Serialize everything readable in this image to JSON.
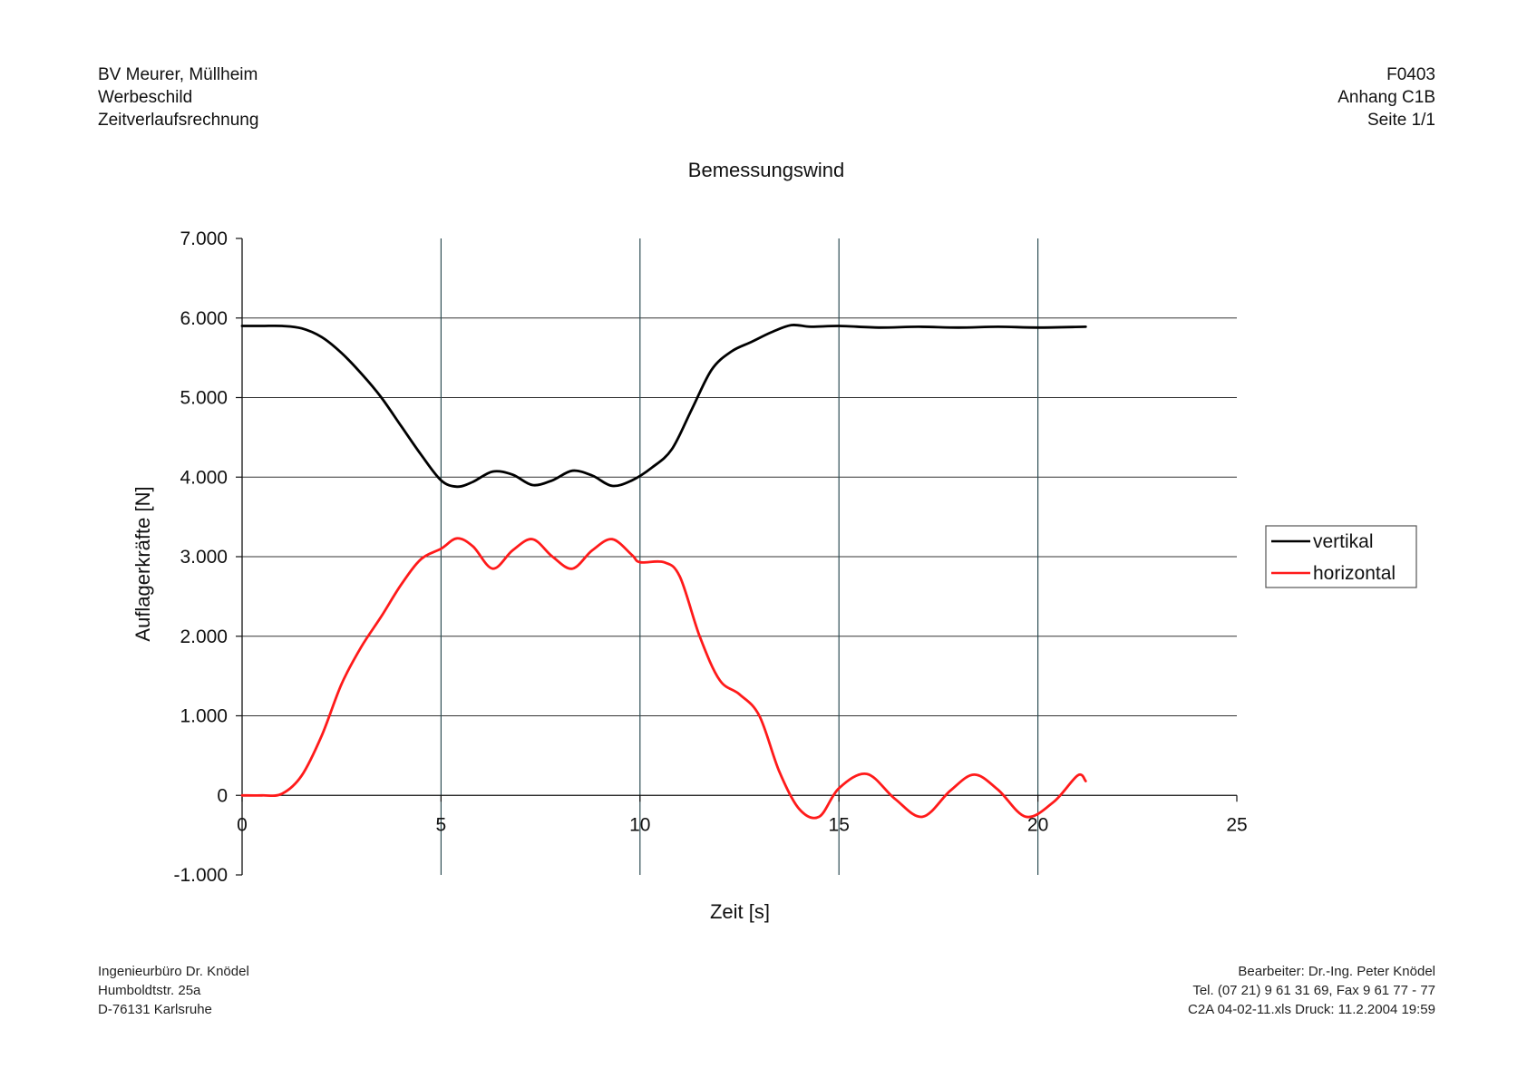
{
  "header": {
    "left_lines": [
      "BV Meurer, Müllheim",
      "Werbeschild",
      "Zeitverlaufsrechnung"
    ],
    "right_lines": [
      "F0403",
      "Anhang C1B",
      "Seite 1/1"
    ]
  },
  "footer": {
    "left_lines": [
      "Ingenieurbüro Dr. Knödel",
      "Humboldtstr. 25a",
      "D-76131 Karlsruhe"
    ],
    "right_lines": [
      "Bearbeiter: Dr.-Ing. Peter Knödel",
      "Tel. (07 21) 9 61 31 69, Fax 9 61 77 - 77",
      "C2A 04-02-11.xls Druck: 11.2.2004 19:59"
    ]
  },
  "chart_data": {
    "type": "line",
    "title": "Bemessungswind",
    "xlabel": "Zeit [s]",
    "ylabel": "Auflagerkräfte [N]",
    "xlim": [
      0,
      25
    ],
    "ylim": [
      -1000,
      7000
    ],
    "x_ticks": [
      0,
      5,
      10,
      15,
      20,
      25
    ],
    "x_tick_labels": [
      "0",
      "5",
      "10",
      "15",
      "20",
      "25"
    ],
    "y_ticks": [
      -1000,
      0,
      1000,
      2000,
      3000,
      4000,
      5000,
      6000,
      7000
    ],
    "y_tick_labels": [
      "-1.000",
      "0",
      "1.000",
      "2.000",
      "3.000",
      "4.000",
      "5.000",
      "6.000",
      "7.000"
    ],
    "grid": {
      "vertical": true,
      "horizontal": true
    },
    "legend_position": "right",
    "series": [
      {
        "name": "vertikal",
        "color": "#000000",
        "x": [
          0,
          0.5,
          1.0,
          1.5,
          2.0,
          2.5,
          3.0,
          3.5,
          4.0,
          4.5,
          5.0,
          5.4,
          5.8,
          6.3,
          6.8,
          7.3,
          7.8,
          8.3,
          8.8,
          9.3,
          9.8,
          10.3,
          10.8,
          11.3,
          11.8,
          12.3,
          12.8,
          13.3,
          13.8,
          14.3,
          15.0,
          16.0,
          17.0,
          18.0,
          19.0,
          20.0,
          21.2
        ],
        "y": [
          5900,
          5900,
          5900,
          5870,
          5760,
          5560,
          5300,
          5000,
          4640,
          4280,
          3960,
          3880,
          3940,
          4070,
          4030,
          3900,
          3960,
          4080,
          4020,
          3890,
          3960,
          4120,
          4350,
          4850,
          5350,
          5580,
          5700,
          5820,
          5910,
          5890,
          5900,
          5880,
          5890,
          5880,
          5890,
          5880,
          5890
        ]
      },
      {
        "name": "horizontal",
        "color": "#ff1a1a",
        "x": [
          0,
          0.5,
          1.0,
          1.5,
          2.0,
          2.5,
          3.0,
          3.5,
          4.0,
          4.5,
          5.0,
          5.4,
          5.8,
          6.3,
          6.8,
          7.3,
          7.8,
          8.3,
          8.8,
          9.3,
          9.8,
          10.0,
          10.6,
          11.0,
          11.5,
          12.0,
          12.5,
          13.0,
          13.5,
          14.0,
          14.5,
          15.0,
          15.7,
          16.4,
          17.1,
          17.8,
          18.4,
          19.0,
          19.7,
          20.4,
          21.0,
          21.2
        ],
        "y": [
          0,
          0,
          20,
          250,
          750,
          1400,
          1870,
          2250,
          2650,
          2970,
          3100,
          3230,
          3130,
          2850,
          3080,
          3220,
          3000,
          2850,
          3080,
          3220,
          3020,
          2930,
          2930,
          2750,
          2000,
          1450,
          1270,
          1000,
          300,
          -170,
          -270,
          90,
          270,
          -40,
          -270,
          60,
          260,
          70,
          -270,
          -80,
          250,
          180
        ]
      }
    ]
  }
}
